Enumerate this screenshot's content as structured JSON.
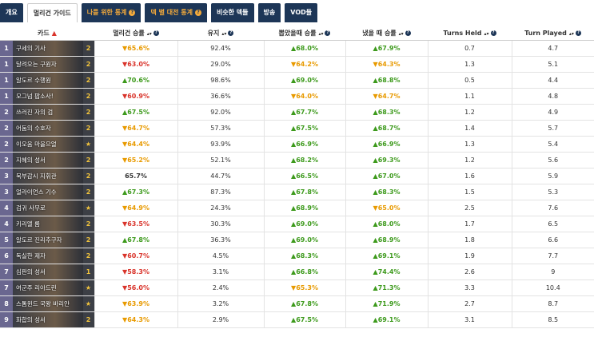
{
  "tabs": [
    {
      "label": "개요"
    },
    {
      "label": "멀리건 가이드",
      "active": true
    },
    {
      "label": "나를 위한 통계",
      "color": "#f2a93b"
    },
    {
      "label": "덱 별 대전 통계",
      "color": "#f2a93b"
    },
    {
      "label": "비슷한 덱들"
    },
    {
      "label": "방송"
    },
    {
      "label": "VOD들"
    }
  ],
  "table": {
    "header": [
      "카드",
      "멀리건 승률",
      "유지",
      "뽑았을때 승률",
      "냈을 때 승률",
      "Turns Held",
      "Turn Played"
    ],
    "rows": [
      {
        "cost": "1",
        "name": "구세의 기사",
        "count": "2",
        "mulligan": {
          "text": "▼65.6%",
          "color": "#e89a00"
        },
        "kept": "92.4%",
        "drawn": {
          "text": "▲68.0%",
          "color": "#3d9a1c"
        },
        "played": {
          "text": "▲67.9%",
          "color": "#3d9a1c"
        },
        "held": "0.7",
        "turn": "4.7"
      },
      {
        "cost": "1",
        "name": "달려오는 구원자",
        "count": "2",
        "mulligan": {
          "text": "▼63.0%",
          "color": "#d9342b"
        },
        "kept": "29.0%",
        "drawn": {
          "text": "▼64.2%",
          "color": "#e89a00"
        },
        "played": {
          "text": "▼64.3%",
          "color": "#e89a00"
        },
        "held": "1.3",
        "turn": "5.1"
      },
      {
        "cost": "1",
        "name": "알도르 수행원",
        "count": "2",
        "mulligan": {
          "text": "▲70.6%",
          "color": "#3d9a1c"
        },
        "kept": "98.6%",
        "drawn": {
          "text": "▲69.0%",
          "color": "#3d9a1c"
        },
        "played": {
          "text": "▲68.8%",
          "color": "#3d9a1c"
        },
        "held": "0.5",
        "turn": "4.4"
      },
      {
        "cost": "1",
        "name": "모그넘 팝소사!",
        "count": "2",
        "mulligan": {
          "text": "▼60.9%",
          "color": "#d9342b"
        },
        "kept": "36.6%",
        "drawn": {
          "text": "▼64.0%",
          "color": "#e89a00"
        },
        "played": {
          "text": "▼64.7%",
          "color": "#e89a00"
        },
        "held": "1.1",
        "turn": "4.8"
      },
      {
        "cost": "2",
        "name": "쓰러진 자의 검",
        "count": "2",
        "mulligan": {
          "text": "▲67.5%",
          "color": "#3d9a1c"
        },
        "kept": "92.0%",
        "drawn": {
          "text": "▲67.7%",
          "color": "#3d9a1c"
        },
        "played": {
          "text": "▲68.3%",
          "color": "#3d9a1c"
        },
        "held": "1.2",
        "turn": "4.9"
      },
      {
        "cost": "2",
        "name": "어둠의 수호자",
        "count": "2",
        "mulligan": {
          "text": "▼64.7%",
          "color": "#e89a00"
        },
        "kept": "57.3%",
        "drawn": {
          "text": "▲67.5%",
          "color": "#3d9a1c"
        },
        "played": {
          "text": "▲68.7%",
          "color": "#3d9a1c"
        },
        "held": "1.4",
        "turn": "5.7"
      },
      {
        "cost": "2",
        "name": "이오움 마을으얼",
        "count": "★",
        "mulligan": {
          "text": "▼64.4%",
          "color": "#e89a00"
        },
        "kept": "93.9%",
        "drawn": {
          "text": "▲66.9%",
          "color": "#3d9a1c"
        },
        "played": {
          "text": "▲66.9%",
          "color": "#3d9a1c"
        },
        "held": "1.3",
        "turn": "5.4"
      },
      {
        "cost": "2",
        "name": "지혜의 성서",
        "count": "2",
        "mulligan": {
          "text": "▼65.2%",
          "color": "#e89a00"
        },
        "kept": "52.1%",
        "drawn": {
          "text": "▲68.2%",
          "color": "#3d9a1c"
        },
        "played": {
          "text": "▲69.3%",
          "color": "#3d9a1c"
        },
        "held": "1.2",
        "turn": "5.6"
      },
      {
        "cost": "3",
        "name": "북부감시 지휘관",
        "count": "2",
        "mulligan": {
          "text": "65.7%",
          "color": "#333333"
        },
        "kept": "44.7%",
        "drawn": {
          "text": "▲66.5%",
          "color": "#3d9a1c"
        },
        "played": {
          "text": "▲67.0%",
          "color": "#3d9a1c"
        },
        "held": "1.6",
        "turn": "5.9"
      },
      {
        "cost": "3",
        "name": "얼라이언스 기수",
        "count": "2",
        "mulligan": {
          "text": "▲67.3%",
          "color": "#3d9a1c"
        },
        "kept": "87.3%",
        "drawn": {
          "text": "▲67.8%",
          "color": "#3d9a1c"
        },
        "played": {
          "text": "▲68.3%",
          "color": "#3d9a1c"
        },
        "held": "1.5",
        "turn": "5.3"
      },
      {
        "cost": "4",
        "name": "검귀 사무로",
        "count": "★",
        "mulligan": {
          "text": "▼64.9%",
          "color": "#e89a00"
        },
        "kept": "24.3%",
        "drawn": {
          "text": "▲68.9%",
          "color": "#3d9a1c"
        },
        "played": {
          "text": "▼65.0%",
          "color": "#e89a00"
        },
        "held": "2.5",
        "turn": "7.6"
      },
      {
        "cost": "4",
        "name": "키리엘 룸",
        "count": "2",
        "mulligan": {
          "text": "▼63.5%",
          "color": "#d9342b"
        },
        "kept": "30.3%",
        "drawn": {
          "text": "▲69.0%",
          "color": "#3d9a1c"
        },
        "played": {
          "text": "▲68.0%",
          "color": "#3d9a1c"
        },
        "held": "1.7",
        "turn": "6.5"
      },
      {
        "cost": "5",
        "name": "알도르 진리추구자",
        "count": "2",
        "mulligan": {
          "text": "▲67.8%",
          "color": "#3d9a1c"
        },
        "kept": "36.3%",
        "drawn": {
          "text": "▲69.0%",
          "color": "#3d9a1c"
        },
        "played": {
          "text": "▲68.9%",
          "color": "#3d9a1c"
        },
        "held": "1.8",
        "turn": "6.6"
      },
      {
        "cost": "6",
        "name": "독실한 제자",
        "count": "2",
        "mulligan": {
          "text": "▼60.7%",
          "color": "#d9342b"
        },
        "kept": "4.5%",
        "drawn": {
          "text": "▲68.3%",
          "color": "#3d9a1c"
        },
        "played": {
          "text": "▲69.1%",
          "color": "#3d9a1c"
        },
        "held": "1.9",
        "turn": "7.7"
      },
      {
        "cost": "7",
        "name": "심판의 성서",
        "count": "1",
        "mulligan": {
          "text": "▼58.3%",
          "color": "#d9342b"
        },
        "kept": "3.1%",
        "drawn": {
          "text": "▲66.8%",
          "color": "#3d9a1c"
        },
        "played": {
          "text": "▲74.4%",
          "color": "#3d9a1c"
        },
        "held": "2.6",
        "turn": "9"
      },
      {
        "cost": "7",
        "name": "여군주 리아드린",
        "count": "★",
        "mulligan": {
          "text": "▼56.0%",
          "color": "#d9342b"
        },
        "kept": "2.4%",
        "drawn": {
          "text": "▼65.3%",
          "color": "#e89a00"
        },
        "played": {
          "text": "▲71.3%",
          "color": "#3d9a1c"
        },
        "held": "3.3",
        "turn": "10.4"
      },
      {
        "cost": "8",
        "name": "스톰윈드 국왕 바리안",
        "count": "★",
        "mulligan": {
          "text": "▼63.9%",
          "color": "#e89a00"
        },
        "kept": "3.2%",
        "drawn": {
          "text": "▲67.8%",
          "color": "#3d9a1c"
        },
        "played": {
          "text": "▲71.9%",
          "color": "#3d9a1c"
        },
        "held": "2.7",
        "turn": "8.7"
      },
      {
        "cost": "9",
        "name": "화합의 성서",
        "count": "2",
        "mulligan": {
          "text": "▼64.3%",
          "color": "#e89a00"
        },
        "kept": "2.9%",
        "drawn": {
          "text": "▲67.5%",
          "color": "#3d9a1c"
        },
        "played": {
          "text": "▲69.1%",
          "color": "#3d9a1c"
        },
        "held": "3.1",
        "turn": "8.5"
      }
    ]
  }
}
